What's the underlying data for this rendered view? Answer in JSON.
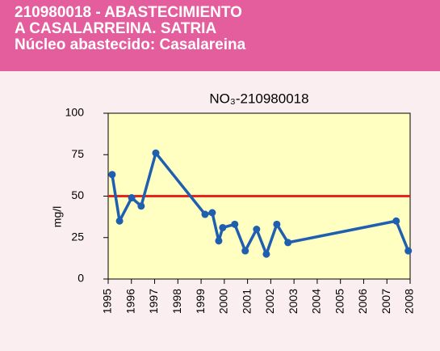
{
  "header": [
    "210980018 - ABASTECIMIENTO",
    "A CASALARREINA. SATRIA",
    "Núcleo abastecido: Casalareina"
  ],
  "chart_data": {
    "type": "line",
    "title": "NO₃-210980018",
    "y_label": "mg/l",
    "x": [
      1995.17,
      1995.49,
      1996.01,
      1996.42,
      1997.05,
      1999.17,
      1999.48,
      1999.76,
      1999.93,
      2000.45,
      2000.9,
      2001.39,
      2001.81,
      2002.26,
      2002.74,
      2007.4,
      2007.92
    ],
    "series": [
      {
        "color": "#1f5fb0",
        "values": [
          63,
          35,
          49,
          44,
          76,
          39,
          40,
          23,
          31,
          33,
          17,
          30,
          15,
          33,
          22,
          35,
          17
        ]
      }
    ],
    "xlim": [
      1995,
      2008
    ],
    "xticks": [
      1995,
      1996,
      1997,
      1998,
      1999,
      2000,
      2001,
      2002,
      2003,
      2004,
      2005,
      2006,
      2007,
      2008
    ],
    "ylim": [
      0,
      100
    ],
    "yticks": [
      0,
      25,
      50,
      75,
      100
    ],
    "reference_line": {
      "value": 50,
      "color": "#e8241c"
    },
    "plot_background": "#ffffc2"
  }
}
